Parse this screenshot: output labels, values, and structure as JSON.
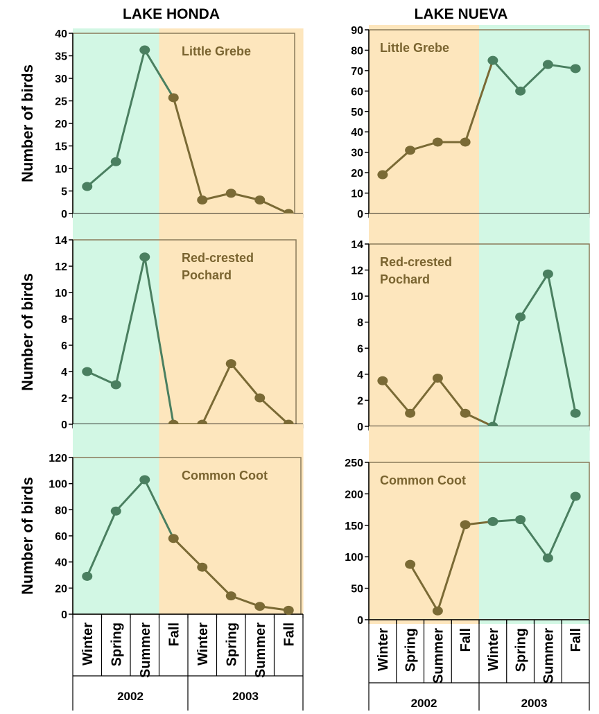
{
  "colors": {
    "green_bg": "#d2f7e4",
    "tan_bg": "#fde6bd",
    "green_line": "#4a7f60",
    "brown_line": "#7a6a35",
    "title_color": "#7a6430",
    "frame": "#8a7a5a"
  },
  "categories": [
    "Winter",
    "Spring",
    "Summer",
    "Fall",
    "Winter",
    "Spring",
    "Summer",
    "Fall"
  ],
  "years": [
    "2002",
    "2003"
  ],
  "chart_data": [
    {
      "type": "line",
      "lake": "LAKE HONDA",
      "title": "Little Grebe",
      "ylabel": "Number of birds",
      "ylim": [
        0,
        40
      ],
      "yticks": [
        "0",
        "5",
        "10",
        "15",
        "20",
        "25",
        "30",
        "35",
        "40"
      ],
      "values": [
        6,
        11.5,
        36.3,
        25.7,
        3,
        4.5,
        3,
        0
      ],
      "shading": [
        "green",
        "green",
        "green",
        "tan",
        "tan",
        "tan",
        "tan",
        "tan"
      ]
    },
    {
      "type": "line",
      "lake": "LAKE HONDA",
      "title": "Red-crested\nPochard",
      "ylabel": "Number of birds",
      "ylim": [
        0,
        14
      ],
      "yticks": [
        "0",
        "2",
        "4",
        "6",
        "8",
        "10",
        "12",
        "14"
      ],
      "values": [
        4,
        3,
        12.7,
        0,
        0,
        4.6,
        2,
        0
      ],
      "shading": [
        "green",
        "green",
        "green",
        "tan",
        "tan",
        "tan",
        "tan",
        "tan"
      ]
    },
    {
      "type": "line",
      "lake": "LAKE HONDA",
      "title": "Common Coot",
      "ylabel": "Number of birds",
      "ylim": [
        0,
        120
      ],
      "yticks": [
        "0",
        "20",
        "40",
        "60",
        "80",
        "100",
        "120"
      ],
      "values": [
        29,
        79,
        103,
        58,
        36,
        14,
        6,
        3
      ],
      "shading": [
        "green",
        "green",
        "green",
        "tan",
        "tan",
        "tan",
        "tan",
        "tan"
      ]
    },
    {
      "type": "line",
      "lake": "LAKE NUEVA",
      "title": "Little Grebe",
      "ylabel": "",
      "ylim": [
        0,
        90
      ],
      "yticks": [
        "0",
        "10",
        "20",
        "30",
        "40",
        "50",
        "60",
        "70",
        "80",
        "90"
      ],
      "values": [
        19,
        31,
        35,
        35,
        75,
        60,
        73,
        71
      ],
      "shading": [
        "tan",
        "tan",
        "tan",
        "tan",
        "green",
        "green",
        "green",
        "green"
      ]
    },
    {
      "type": "line",
      "lake": "LAKE NUEVA",
      "title": "Red-crested\nPochard",
      "ylabel": "",
      "ylim": [
        0,
        14
      ],
      "yticks": [
        "0",
        "2",
        "4",
        "6",
        "8",
        "10",
        "12",
        "14"
      ],
      "values": [
        3.5,
        1,
        3.7,
        1,
        0,
        8.4,
        11.7,
        1
      ],
      "shading": [
        "tan",
        "tan",
        "tan",
        "tan",
        "green",
        "green",
        "green",
        "green"
      ]
    },
    {
      "type": "line",
      "lake": "LAKE NUEVA",
      "title": "Common Coot",
      "ylabel": "",
      "ylim": [
        0,
        250
      ],
      "yticks": [
        "0",
        "50",
        "100",
        "150",
        "200",
        "250"
      ],
      "values": [
        null,
        88,
        14,
        151,
        156,
        159,
        98,
        196
      ],
      "shading": [
        "tan",
        "tan",
        "tan",
        "tan",
        "green",
        "green",
        "green",
        "green"
      ]
    }
  ]
}
